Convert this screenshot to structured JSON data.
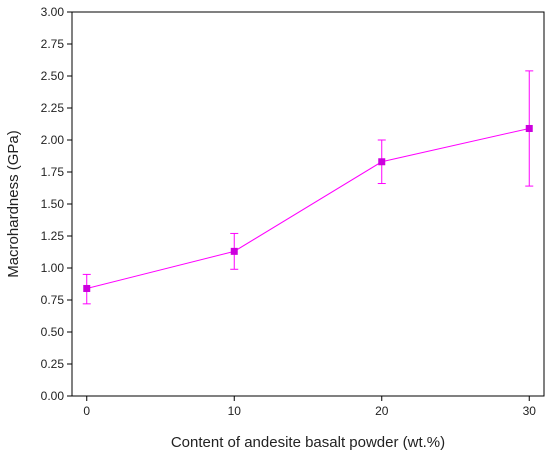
{
  "chart_data": {
    "type": "line",
    "xlabel": "Content of andesite basalt powder (wt.%)",
    "ylabel": "Macrohardness (GPa)",
    "xlim": [
      -1,
      31
    ],
    "ylim": [
      0,
      3
    ],
    "x_ticks": [
      0,
      10,
      20,
      30
    ],
    "x_tick_labels": [
      "0",
      "10",
      "20",
      "30"
    ],
    "y_ticks": [
      0,
      0.25,
      0.5,
      0.75,
      1,
      1.25,
      1.5,
      1.75,
      2,
      2.25,
      2.5,
      2.75,
      3
    ],
    "y_tick_labels": [
      "0.00",
      "0.25",
      "0.50",
      "0.75",
      "1.00",
      "1.25",
      "1.50",
      "1.75",
      "2.00",
      "2.25",
      "2.50",
      "2.75",
      "3.00"
    ],
    "grid": false,
    "series": [
      {
        "x": [
          0,
          10,
          20,
          30
        ],
        "y": [
          0.84,
          1.13,
          1.83,
          2.09
        ],
        "error_low": [
          0.72,
          0.99,
          1.66,
          1.64
        ],
        "error_high": [
          0.95,
          1.27,
          2.0,
          2.54
        ],
        "color": "#ff00ff",
        "marker_color": "#cc00dd",
        "marker": "square"
      }
    ]
  }
}
